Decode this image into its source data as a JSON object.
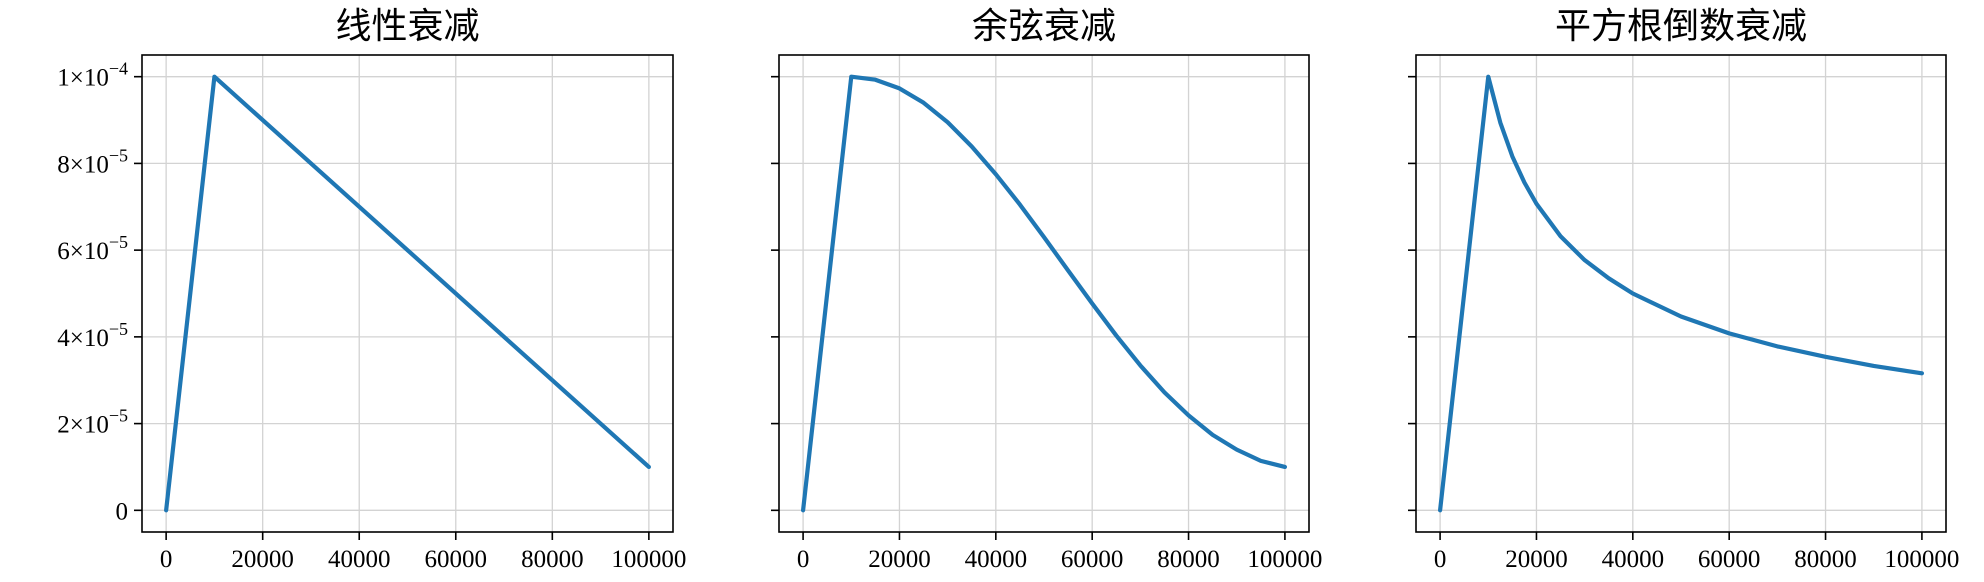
{
  "chart_data": [
    {
      "type": "line",
      "title": "线性衰减",
      "xlim": [
        -5000,
        105000
      ],
      "ylim": [
        -5e-06,
        0.000105
      ],
      "xticks": [
        0,
        20000,
        40000,
        60000,
        80000,
        100000
      ],
      "xtick_labels": [
        "0",
        "20000",
        "40000",
        "60000",
        "80000",
        "100000"
      ],
      "yticks": [
        0,
        2e-05,
        4e-05,
        6e-05,
        8e-05,
        0.0001
      ],
      "ytick_labels": [
        {
          "mantissa": "0",
          "exponent": ""
        },
        {
          "mantissa": "2",
          "exponent": "−5"
        },
        {
          "mantissa": "4",
          "exponent": "−5"
        },
        {
          "mantissa": "6",
          "exponent": "−5"
        },
        {
          "mantissa": "8",
          "exponent": "−5"
        },
        {
          "mantissa": "1",
          "exponent": "−4"
        }
      ],
      "grid": true,
      "series": [
        {
          "color": "#1f77b4",
          "x": [
            0,
            10000,
            100000
          ],
          "y": [
            0,
            0.0001,
            1e-05
          ]
        }
      ]
    },
    {
      "type": "line",
      "title": "余弦衰减",
      "xlim": [
        -5000,
        105000
      ],
      "ylim": [
        -5e-06,
        0.000105
      ],
      "xticks": [
        0,
        20000,
        40000,
        60000,
        80000,
        100000
      ],
      "xtick_labels": [
        "0",
        "20000",
        "40000",
        "60000",
        "80000",
        "100000"
      ],
      "yticks": [
        0,
        2e-05,
        4e-05,
        6e-05,
        8e-05,
        0.0001
      ],
      "grid": true,
      "series": [
        {
          "color": "#1f77b4",
          "x": [
            0,
            10000,
            15000,
            20000,
            25000,
            30000,
            35000,
            40000,
            45000,
            50000,
            55000,
            60000,
            65000,
            70000,
            75000,
            80000,
            85000,
            90000,
            95000,
            100000
          ],
          "y": [
            0,
            0.0001,
            9.93e-05,
            9.73e-05,
            9.4e-05,
            8.95e-05,
            8.39e-05,
            7.75e-05,
            7.05e-05,
            6.3e-05,
            5.53e-05,
            4.77e-05,
            4.03e-05,
            3.34e-05,
            2.72e-05,
            2.19e-05,
            1.74e-05,
            1.4e-05,
            1.14e-05,
            1e-05
          ]
        }
      ]
    },
    {
      "type": "line",
      "title": "平方根倒数衰减",
      "xlim": [
        -5000,
        105000
      ],
      "ylim": [
        -5e-06,
        0.000105
      ],
      "xticks": [
        0,
        20000,
        40000,
        60000,
        80000,
        100000
      ],
      "xtick_labels": [
        "0",
        "20000",
        "40000",
        "60000",
        "80000",
        "100000"
      ],
      "yticks": [
        0,
        2e-05,
        4e-05,
        6e-05,
        8e-05,
        0.0001
      ],
      "grid": true,
      "series": [
        {
          "color": "#1f77b4",
          "x": [
            0,
            10000,
            12500,
            15000,
            17500,
            20000,
            25000,
            30000,
            35000,
            40000,
            50000,
            60000,
            70000,
            80000,
            90000,
            100000
          ],
          "y": [
            0,
            0.0001,
            8.94e-05,
            8.16e-05,
            7.56e-05,
            7.07e-05,
            6.32e-05,
            5.77e-05,
            5.35e-05,
            5e-05,
            4.47e-05,
            4.08e-05,
            3.78e-05,
            3.54e-05,
            3.33e-05,
            3.16e-05
          ]
        }
      ]
    }
  ]
}
